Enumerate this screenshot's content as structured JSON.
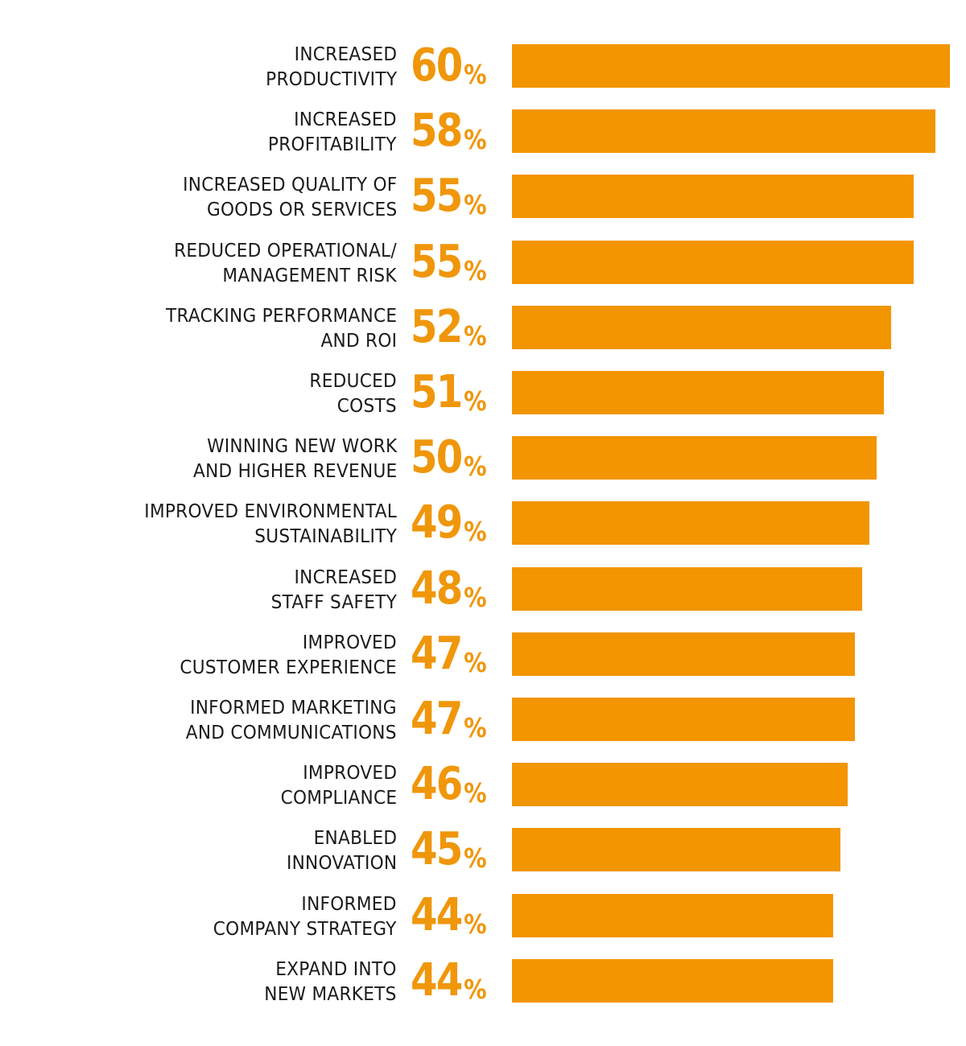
{
  "colors": {
    "accent": "#f29500",
    "value_text": "#f0960a",
    "label_text": "#1a1a1a",
    "background": "#ffffff"
  },
  "chart_data": {
    "type": "bar",
    "orientation": "horizontal",
    "categories": [
      [
        "INCREASED",
        "PRODUCTIVITY"
      ],
      [
        "INCREASED",
        "PROFITABILITY"
      ],
      [
        "INCREASED QUALITY OF",
        "GOODS OR SERVICES"
      ],
      [
        "REDUCED OPERATIONAL/",
        "MANAGEMENT RISK"
      ],
      [
        "TRACKING PERFORMANCE",
        "AND ROI"
      ],
      [
        "REDUCED",
        "COSTS"
      ],
      [
        "WINNING NEW WORK",
        "AND HIGHER REVENUE"
      ],
      [
        "IMPROVED ENVIRONMENTAL",
        "SUSTAINABILITY"
      ],
      [
        "INCREASED",
        "STAFF SAFETY"
      ],
      [
        "IMPROVED",
        "CUSTOMER EXPERIENCE"
      ],
      [
        "INFORMED MARKETING",
        "AND COMMUNICATIONS"
      ],
      [
        "IMPROVED",
        "COMPLIANCE"
      ],
      [
        "ENABLED",
        "INNOVATION"
      ],
      [
        "INFORMED",
        "COMPANY STRATEGY"
      ],
      [
        "EXPAND INTO",
        "NEW MARKETS"
      ]
    ],
    "values": [
      60,
      58,
      55,
      55,
      52,
      51,
      50,
      49,
      48,
      47,
      47,
      46,
      45,
      44,
      44
    ],
    "value_suffix": "%",
    "xlim": [
      0,
      60
    ],
    "grid": false,
    "legend": "none",
    "title": "",
    "xlabel": "",
    "ylabel": ""
  }
}
